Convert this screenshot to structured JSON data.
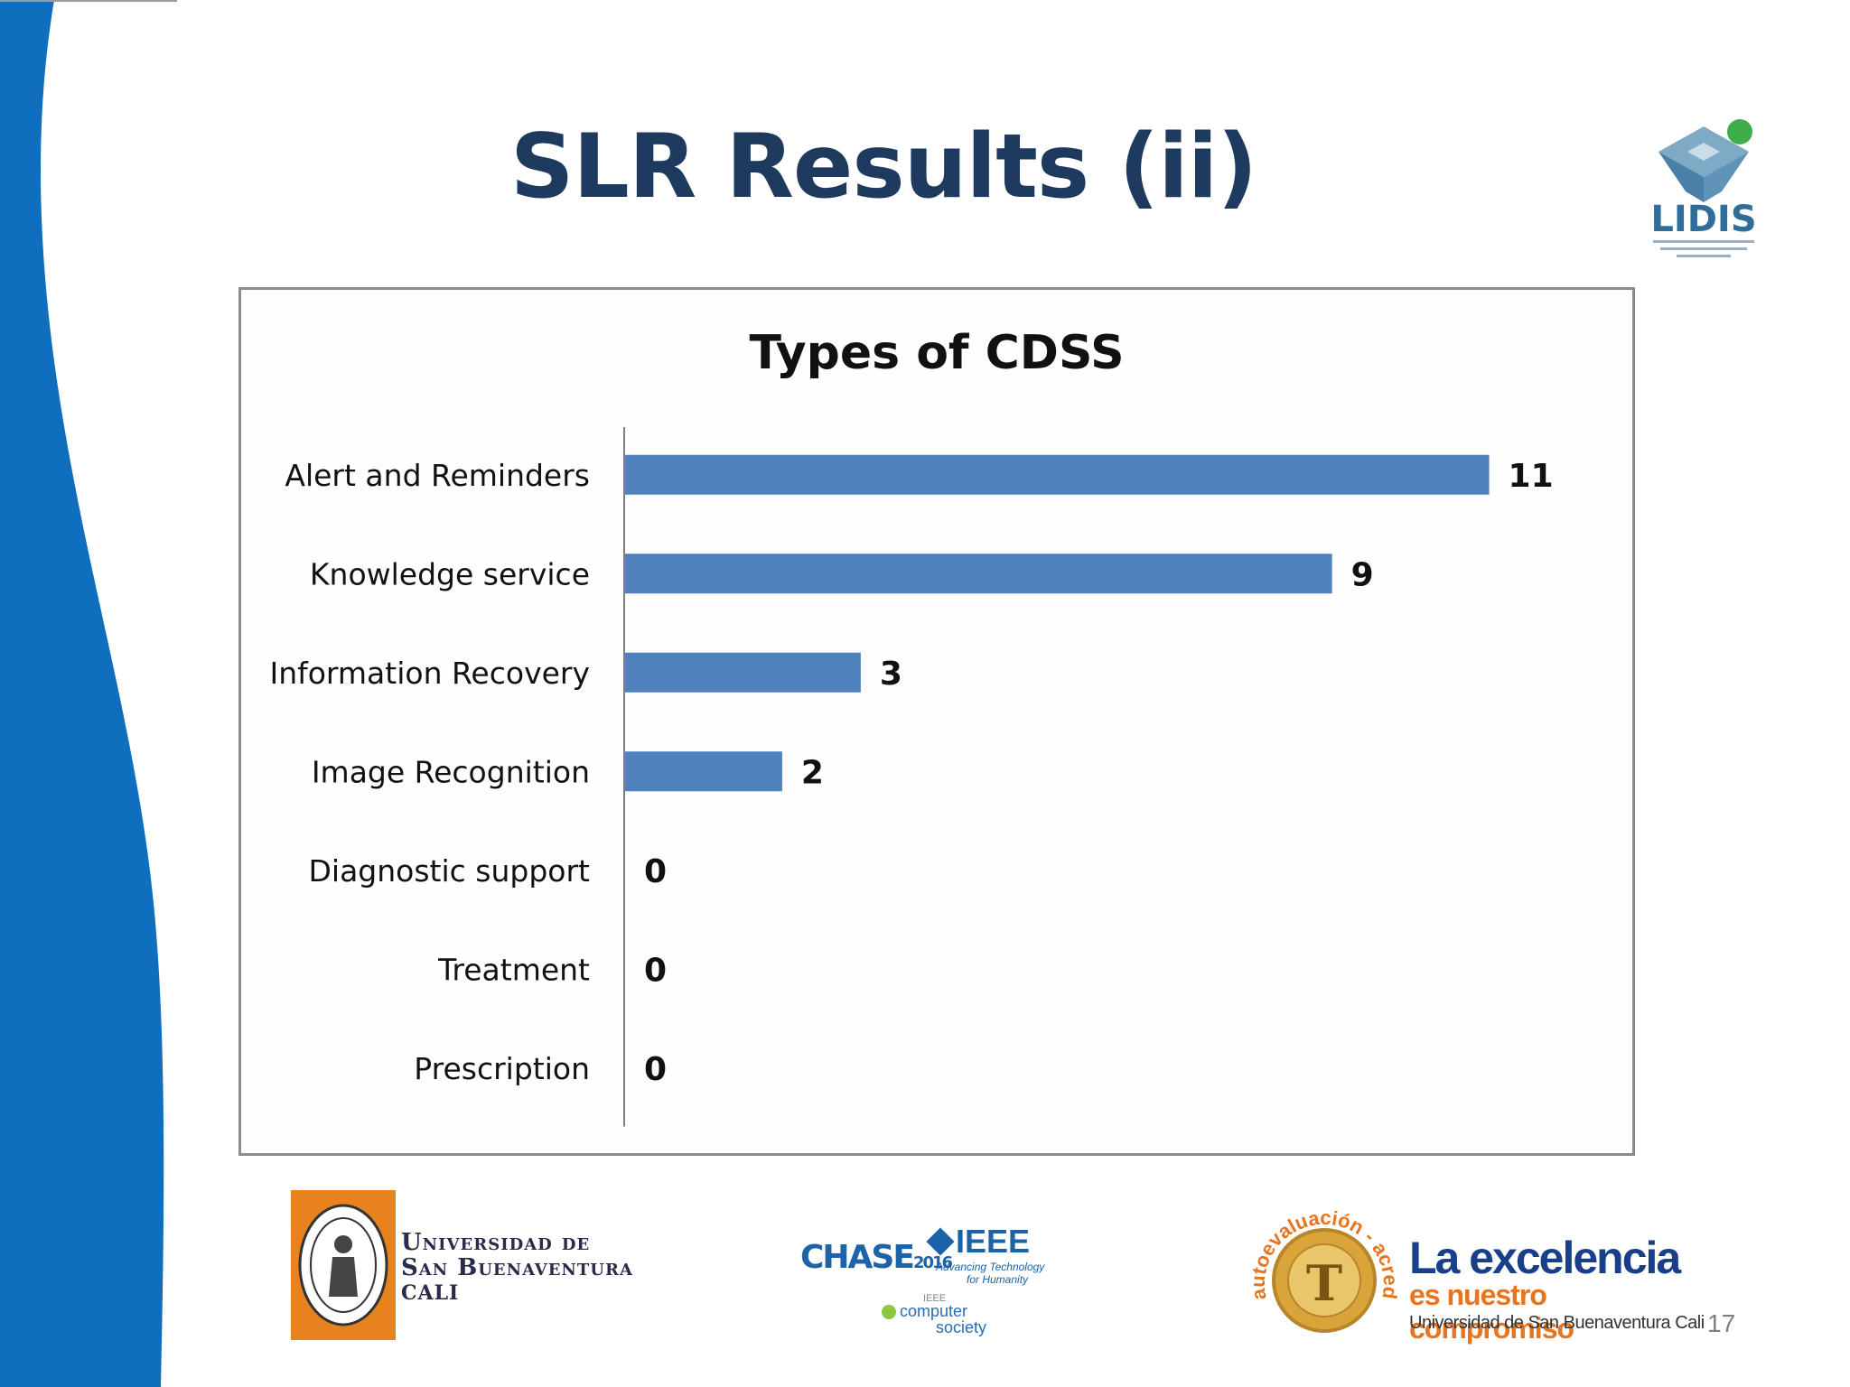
{
  "slide": {
    "title": "SLR Results (ii)",
    "page_number": "17"
  },
  "chart_data": {
    "type": "bar",
    "orientation": "horizontal",
    "title": "Types of CDSS",
    "categories": [
      "Alert and Reminders",
      "Knowledge service",
      "Information Recovery",
      "Image Recognition",
      "Diagnostic support",
      "Treatment",
      "Prescription"
    ],
    "values": [
      11,
      9,
      3,
      2,
      0,
      0,
      0
    ],
    "xlim": [
      0,
      11.5
    ],
    "bar_color": "#4f81bd",
    "grid": false,
    "legend": "none",
    "data_labels": true
  },
  "logos": {
    "lidis": {
      "name": "LIDIS",
      "icon": "lidis-cube-logo",
      "colors": [
        "#4a7fa8",
        "#8fb8cf",
        "#3fae49"
      ]
    },
    "university": {
      "icon": "university-seal",
      "line1": "Universidad de",
      "line2": "San Buenaventura",
      "line3": "Cali",
      "seal_color": "#e8821e"
    },
    "chase": {
      "text": "CHASE",
      "year": "2016"
    },
    "ieee": {
      "text": "IEEE",
      "tagline1": "Advancing Technology",
      "tagline2": "for Humanity"
    },
    "computer_society": {
      "top": "IEEE",
      "line1": "computer",
      "line2": "society"
    },
    "accreditation": {
      "arc_text": "autoevaluación - acreditación",
      "headline": "La excelencia",
      "subheadline": "es nuestro compromiso",
      "university": "Universidad de San Buenaventura Cali",
      "seal_letter": "T"
    }
  },
  "colors": {
    "title": "#1f3a5f",
    "wave_blue": "#0f6fbe",
    "accent_orange": "#e8741e",
    "accred_blue": "#1a3f8a"
  }
}
